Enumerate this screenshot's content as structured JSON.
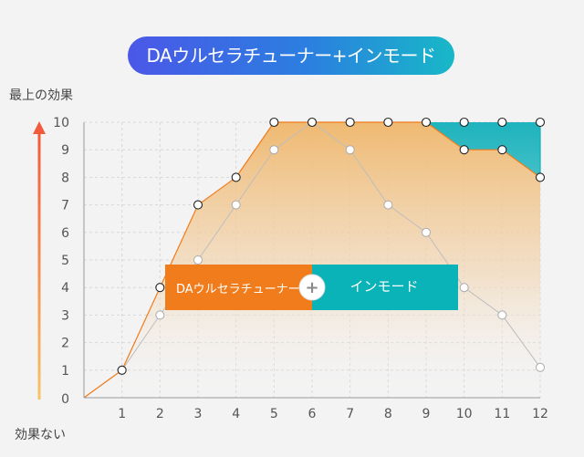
{
  "title": "DAウルセラチューナー+インモード",
  "labels": {
    "top": "最上の効果",
    "bottom": "効果ない"
  },
  "legend": {
    "left": "DAウルセラチューナー",
    "plus": "+",
    "right": "インモード"
  },
  "colors": {
    "orange": "#f07c1b",
    "teal": "#0ab3b8",
    "gray_line": "#bdbdbd"
  },
  "chart_data": {
    "type": "area",
    "x": [
      0,
      1,
      2,
      3,
      4,
      5,
      6,
      7,
      8,
      9,
      10,
      11,
      12
    ],
    "x_ticks": [
      "1",
      "2",
      "3",
      "4",
      "5",
      "6",
      "7",
      "8",
      "9",
      "10",
      "11",
      "12"
    ],
    "y_ticks": [
      "0",
      "1",
      "2",
      "3",
      "4",
      "5",
      "6",
      "7",
      "8",
      "9",
      "10"
    ],
    "xlim": [
      0,
      12
    ],
    "ylim": [
      0,
      10
    ],
    "grid": true,
    "series": [
      {
        "name": "DAウルセラチューナー+インモード",
        "values": [
          0,
          1,
          4,
          7,
          8,
          10,
          10,
          10,
          10,
          10,
          10,
          10,
          10
        ]
      },
      {
        "name": "DAウルセラチューナー",
        "values": [
          0,
          1,
          4,
          7,
          8,
          10,
          10,
          10,
          10,
          10,
          9,
          9,
          8
        ]
      },
      {
        "name": "インモード",
        "values": [
          0,
          1,
          3,
          5,
          7,
          9,
          10,
          9,
          7,
          6,
          4,
          3,
          1.1
        ]
      }
    ]
  }
}
